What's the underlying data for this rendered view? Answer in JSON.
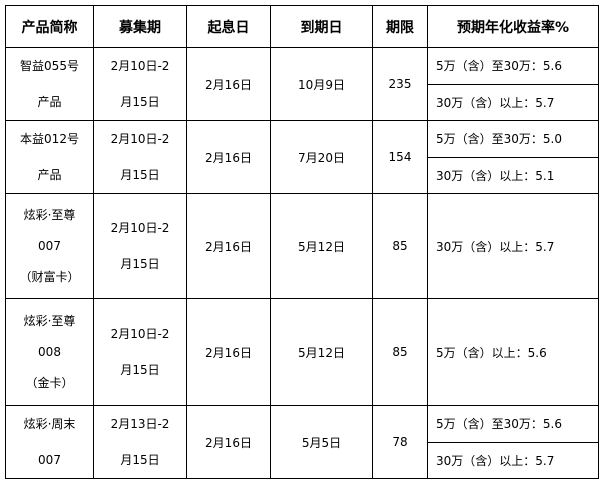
{
  "headers": [
    "产品简称",
    "募集期",
    "起息日",
    "到期日",
    "期限",
    "预期年化收益率%"
  ],
  "rows": [
    {
      "name_lines": [
        "智益055号",
        "产品"
      ],
      "period_lines": [
        "2月10日-2",
        "月15日"
      ],
      "start": "2月16日",
      "end": "10月9日",
      "term": "235",
      "rates": [
        "5万（含）至30万：5.6",
        "30万（含）以上：5.7"
      ]
    },
    {
      "name_lines": [
        "本益012号",
        "产品"
      ],
      "period_lines": [
        "2月10日-2",
        "月15日"
      ],
      "start": "2月16日",
      "end": "7月20日",
      "term": "154",
      "rates": [
        "5万（含）至30万：5.0",
        "30万（含）以上：5.1"
      ]
    },
    {
      "name_lines": [
        "炫彩·至尊",
        "007",
        "（财富卡）"
      ],
      "period_lines": [
        "2月10日-2",
        "月15日"
      ],
      "start": "2月16日",
      "end": "5月12日",
      "term": "85",
      "rates": [
        "30万（含）以上：5.7"
      ]
    },
    {
      "name_lines": [
        "炫彩·至尊",
        "008",
        "（金卡）"
      ],
      "period_lines": [
        "2月10日-2",
        "月15日"
      ],
      "start": "2月16日",
      "end": "5月12日",
      "term": "85",
      "rates": [
        "5万（含）以上：5.6"
      ]
    },
    {
      "name_lines": [
        "炫彩·周末",
        "007"
      ],
      "period_lines": [
        "2月13日-2",
        "月15日"
      ],
      "start": "2月16日",
      "end": "5月5日",
      "term": "78",
      "rates": [
        "5万（含）至30万：5.6",
        "30万（含）以上：5.7"
      ]
    }
  ]
}
